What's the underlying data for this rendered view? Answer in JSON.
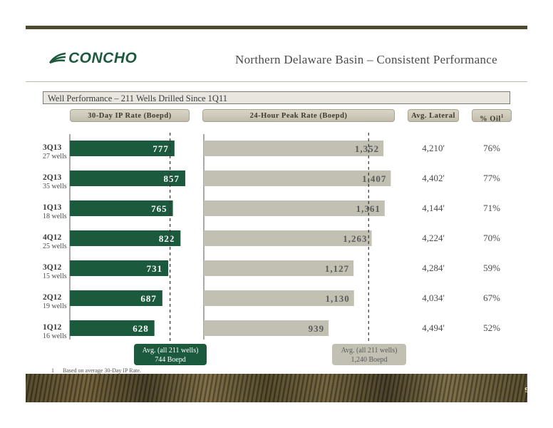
{
  "header": {
    "logo_text": "CONCHO",
    "title": "Northern Delaware Basin – Consistent Performance"
  },
  "subhead": "Well Performance – 211 Wells Drilled Since 1Q11",
  "columns": {
    "ip_rate": "30-Day IP Rate (Boepd)",
    "peak_rate": "24-Hour Peak Rate (Boepd)",
    "lateral": "Avg. Lateral",
    "oil": "% Oil",
    "oil_superscript": "1"
  },
  "chart_data": {
    "type": "bar",
    "categories": [
      "3Q13",
      "2Q13",
      "1Q13",
      "4Q12",
      "3Q12",
      "2Q12",
      "1Q12"
    ],
    "well_counts": [
      "27 wells",
      "35 wells",
      "18 wells",
      "25 wells",
      "15 wells",
      "19 wells",
      "16 wells"
    ],
    "series": [
      {
        "name": "30-Day IP Rate (Boepd)",
        "values": [
          777,
          857,
          765,
          822,
          731,
          687,
          628
        ],
        "labels": [
          "777",
          "857",
          "765",
          "822",
          "731",
          "687",
          "628"
        ],
        "average": 744,
        "color": "#1b5a3d"
      },
      {
        "name": "24-Hour Peak Rate (Boepd)",
        "values": [
          1352,
          1407,
          1361,
          1263,
          1127,
          1130,
          939
        ],
        "labels": [
          "1,352",
          "1,407",
          "1,361",
          "1,263",
          "1,127",
          "1,130",
          "939"
        ],
        "average": 1240,
        "color": "#c2c0b3"
      }
    ],
    "avg_lateral": [
      "4,210'",
      "4,402'",
      "4,144'",
      "4,224'",
      "4,284'",
      "4,034'",
      "4,494'"
    ],
    "pct_oil": [
      "76%",
      "77%",
      "71%",
      "70%",
      "59%",
      "67%",
      "52%"
    ]
  },
  "callouts": {
    "ip": {
      "line1": "Avg. (all 211 wells)",
      "line2": "744 Boepd"
    },
    "peak": {
      "line1": "Avg. (all 211 wells)",
      "line2": "1,240 Boepd"
    }
  },
  "footnote": {
    "number": "1",
    "text": "Based on average 30-Day IP Rate."
  },
  "page_number": "9"
}
